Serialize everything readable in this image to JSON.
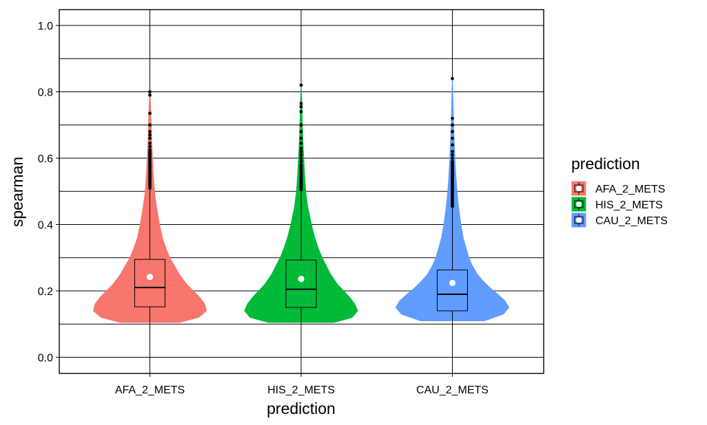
{
  "chart_data": {
    "type": "violin",
    "xlabel": "prediction",
    "ylabel": "spearman",
    "ylim": [
      -0.045,
      1.045
    ],
    "yticks": [
      "0.0",
      "0.2",
      "0.4",
      "0.6",
      "0.8",
      "1.0"
    ],
    "grid": true,
    "legend": {
      "title": "prediction",
      "placement": "right",
      "entries": [
        "AFA_2_METS",
        "HIS_2_METS",
        "CAU_2_METS"
      ]
    },
    "categories": [
      "AFA_2_METS",
      "HIS_2_METS",
      "CAU_2_METS"
    ],
    "series": [
      {
        "name": "AFA_2_METS",
        "color": "#F8766D",
        "median": 0.21,
        "q1": 0.152,
        "q3": 0.295,
        "mean": 0.242,
        "whisker_low": 0.105,
        "whisker_high": 0.505,
        "min": 0.105,
        "max": 0.8,
        "density": [
          [
            0.105,
            0.52
          ],
          [
            0.12,
            0.86
          ],
          [
            0.14,
            1.0
          ],
          [
            0.16,
            0.97
          ],
          [
            0.18,
            0.88
          ],
          [
            0.2,
            0.77
          ],
          [
            0.22,
            0.65
          ],
          [
            0.25,
            0.52
          ],
          [
            0.28,
            0.42
          ],
          [
            0.3,
            0.35
          ],
          [
            0.33,
            0.28
          ],
          [
            0.36,
            0.22
          ],
          [
            0.4,
            0.17
          ],
          [
            0.45,
            0.12
          ],
          [
            0.5,
            0.08
          ],
          [
            0.55,
            0.06
          ],
          [
            0.6,
            0.045
          ],
          [
            0.65,
            0.03
          ],
          [
            0.7,
            0.022
          ],
          [
            0.75,
            0.014
          ],
          [
            0.8,
            0.0
          ]
        ],
        "outliers": [
          0.51,
          0.515,
          0.52,
          0.525,
          0.53,
          0.535,
          0.54,
          0.545,
          0.55,
          0.555,
          0.56,
          0.565,
          0.57,
          0.575,
          0.58,
          0.585,
          0.59,
          0.595,
          0.6,
          0.605,
          0.61,
          0.615,
          0.62,
          0.625,
          0.635,
          0.645,
          0.66,
          0.67,
          0.68,
          0.7,
          0.735,
          0.79,
          0.8
        ]
      },
      {
        "name": "HIS_2_METS",
        "color": "#00BA38",
        "median": 0.205,
        "q1": 0.15,
        "q3": 0.293,
        "mean": 0.236,
        "whisker_low": 0.105,
        "whisker_high": 0.5,
        "min": 0.105,
        "max": 0.82,
        "density": [
          [
            0.105,
            0.58
          ],
          [
            0.12,
            0.9
          ],
          [
            0.14,
            1.0
          ],
          [
            0.16,
            0.95
          ],
          [
            0.18,
            0.86
          ],
          [
            0.2,
            0.75
          ],
          [
            0.22,
            0.64
          ],
          [
            0.25,
            0.52
          ],
          [
            0.28,
            0.43
          ],
          [
            0.3,
            0.37
          ],
          [
            0.33,
            0.3
          ],
          [
            0.36,
            0.24
          ],
          [
            0.4,
            0.18
          ],
          [
            0.45,
            0.12
          ],
          [
            0.5,
            0.08
          ],
          [
            0.55,
            0.06
          ],
          [
            0.6,
            0.045
          ],
          [
            0.65,
            0.03
          ],
          [
            0.7,
            0.02
          ],
          [
            0.75,
            0.013
          ],
          [
            0.82,
            0.0
          ]
        ],
        "outliers": [
          0.505,
          0.51,
          0.515,
          0.52,
          0.525,
          0.53,
          0.535,
          0.54,
          0.545,
          0.55,
          0.555,
          0.56,
          0.565,
          0.57,
          0.575,
          0.58,
          0.59,
          0.6,
          0.61,
          0.62,
          0.63,
          0.645,
          0.66,
          0.68,
          0.7,
          0.74,
          0.755,
          0.765,
          0.82
        ]
      },
      {
        "name": "CAU_2_METS",
        "color": "#619CFF",
        "median": 0.19,
        "q1": 0.14,
        "q3": 0.263,
        "mean": 0.224,
        "whisker_low": 0.11,
        "whisker_high": 0.45,
        "min": 0.11,
        "max": 0.84,
        "density": [
          [
            0.11,
            0.56
          ],
          [
            0.13,
            0.9
          ],
          [
            0.15,
            1.0
          ],
          [
            0.17,
            0.93
          ],
          [
            0.19,
            0.8
          ],
          [
            0.21,
            0.66
          ],
          [
            0.23,
            0.54
          ],
          [
            0.25,
            0.44
          ],
          [
            0.28,
            0.34
          ],
          [
            0.3,
            0.29
          ],
          [
            0.33,
            0.24
          ],
          [
            0.36,
            0.19
          ],
          [
            0.4,
            0.15
          ],
          [
            0.45,
            0.11
          ],
          [
            0.5,
            0.08
          ],
          [
            0.55,
            0.06
          ],
          [
            0.6,
            0.045
          ],
          [
            0.65,
            0.03
          ],
          [
            0.7,
            0.02
          ],
          [
            0.75,
            0.014
          ],
          [
            0.84,
            0.0
          ]
        ],
        "outliers": [
          0.455,
          0.46,
          0.465,
          0.47,
          0.475,
          0.48,
          0.485,
          0.49,
          0.495,
          0.5,
          0.505,
          0.51,
          0.515,
          0.52,
          0.525,
          0.53,
          0.535,
          0.54,
          0.545,
          0.55,
          0.555,
          0.56,
          0.565,
          0.57,
          0.575,
          0.58,
          0.585,
          0.59,
          0.6,
          0.61,
          0.62,
          0.64,
          0.66,
          0.68,
          0.7,
          0.72,
          0.84
        ]
      }
    ]
  }
}
